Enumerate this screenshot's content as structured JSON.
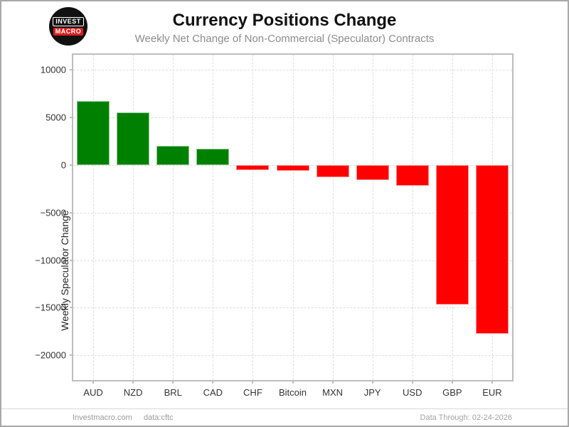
{
  "header": {
    "logo": {
      "line1": "INVEST",
      "line2": "MACRO"
    }
  },
  "chart_data": {
    "type": "bar",
    "title": "Currency Positions Change",
    "subtitle": "Weekly Net Change of Non-Commercial (Speculator) Contracts",
    "xlabel": "",
    "ylabel": "Weekly Speculator Change",
    "categories": [
      "AUD",
      "NZD",
      "BRL",
      "CAD",
      "CHF",
      "Bitcoin",
      "MXN",
      "JPY",
      "USD",
      "GBP",
      "EUR"
    ],
    "values": [
      6700,
      5550,
      2000,
      1750,
      -500,
      -600,
      -1300,
      -1550,
      -2200,
      -14700,
      -17700
    ],
    "yticks": [
      {
        "value": 10000,
        "label": "10000"
      },
      {
        "value": 5000,
        "label": "5000"
      },
      {
        "value": 0,
        "label": "0"
      },
      {
        "value": -5000,
        "label": "−5000"
      },
      {
        "value": -10000,
        "label": "−10000"
      },
      {
        "value": -15000,
        "label": "−15000"
      },
      {
        "value": -20000,
        "label": "−20000"
      }
    ],
    "ylim": [
      -22600,
      11600
    ],
    "grid": true,
    "legend": "none",
    "positive_color": "#008000",
    "negative_color": "#ff0000"
  },
  "footer": {
    "site": "Investmacro.com",
    "source": "data:cftc",
    "data_through": "Data Through: 02-24-2026"
  }
}
